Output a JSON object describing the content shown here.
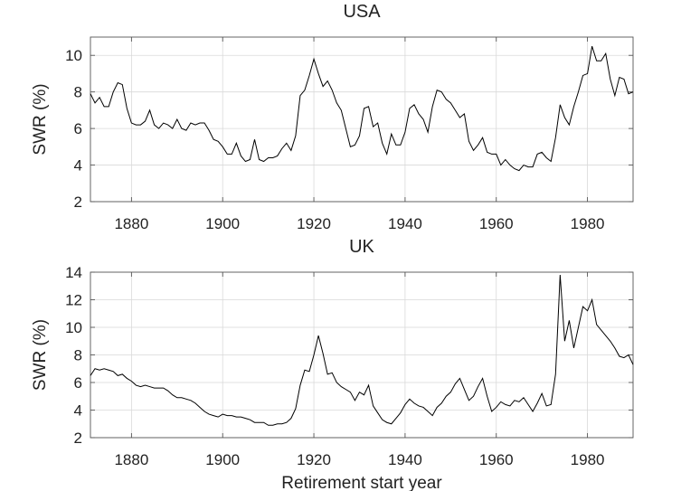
{
  "chart_data": [
    {
      "type": "line",
      "title": "USA",
      "xlabel": "",
      "ylabel": "SWR (%)",
      "xlim": [
        1871,
        1990
      ],
      "ylim": [
        2,
        11
      ],
      "xticks": [
        1880,
        1900,
        1920,
        1940,
        1960,
        1980
      ],
      "yticks": [
        2,
        4,
        6,
        8,
        10
      ],
      "grid": true,
      "series": [
        {
          "color": "#000000",
          "x": [
            1871,
            1872,
            1873,
            1874,
            1875,
            1876,
            1877,
            1878,
            1879,
            1880,
            1881,
            1882,
            1883,
            1884,
            1885,
            1886,
            1887,
            1888,
            1889,
            1890,
            1891,
            1892,
            1893,
            1894,
            1895,
            1896,
            1897,
            1898,
            1899,
            1900,
            1901,
            1902,
            1903,
            1904,
            1905,
            1906,
            1907,
            1908,
            1909,
            1910,
            1911,
            1912,
            1913,
            1914,
            1915,
            1916,
            1917,
            1918,
            1919,
            1920,
            1921,
            1922,
            1923,
            1924,
            1925,
            1926,
            1927,
            1928,
            1929,
            1930,
            1931,
            1932,
            1933,
            1934,
            1935,
            1936,
            1937,
            1938,
            1939,
            1940,
            1941,
            1942,
            1943,
            1944,
            1945,
            1946,
            1947,
            1948,
            1949,
            1950,
            1951,
            1952,
            1953,
            1954,
            1955,
            1956,
            1957,
            1958,
            1959,
            1960,
            1961,
            1962,
            1963,
            1964,
            1965,
            1966,
            1967,
            1968,
            1969,
            1970,
            1971,
            1972,
            1973,
            1974,
            1975,
            1976,
            1977,
            1978,
            1979,
            1980,
            1981,
            1982,
            1983,
            1984,
            1985,
            1986,
            1987,
            1988,
            1989,
            1990
          ],
          "y": [
            7.9,
            7.4,
            7.7,
            7.2,
            7.2,
            8.0,
            8.5,
            8.4,
            7.1,
            6.3,
            6.2,
            6.2,
            6.4,
            7.0,
            6.2,
            6.0,
            6.3,
            6.2,
            6.0,
            6.5,
            6.0,
            5.9,
            6.3,
            6.2,
            6.3,
            6.3,
            5.9,
            5.4,
            5.3,
            5.0,
            4.6,
            4.6,
            5.2,
            4.5,
            4.2,
            4.3,
            5.4,
            4.3,
            4.2,
            4.4,
            4.4,
            4.5,
            4.9,
            5.2,
            4.8,
            5.6,
            7.8,
            8.1,
            8.9,
            9.8,
            9.0,
            8.3,
            8.6,
            8.1,
            7.4,
            7.0,
            6.0,
            5.0,
            5.1,
            5.6,
            7.1,
            7.2,
            6.1,
            6.3,
            5.2,
            4.6,
            5.7,
            5.1,
            5.1,
            5.8,
            7.1,
            7.3,
            6.8,
            6.5,
            5.8,
            7.2,
            8.1,
            8.0,
            7.6,
            7.4,
            7.0,
            6.6,
            6.8,
            5.3,
            4.8,
            5.1,
            5.5,
            4.7,
            4.6,
            4.6,
            4.0,
            4.3,
            4.0,
            3.8,
            3.7,
            4.0,
            3.9,
            3.9,
            4.6,
            4.7,
            4.4,
            4.2,
            5.5,
            7.3,
            6.6,
            6.2,
            7.2,
            8.0,
            8.9,
            9.0,
            10.5,
            9.7,
            9.7,
            10.1,
            8.7,
            7.8,
            8.8,
            8.7,
            7.9,
            8.0
          ]
        }
      ]
    },
    {
      "type": "line",
      "title": "UK",
      "xlabel": "Retirement start year",
      "ylabel": "SWR (%)",
      "xlim": [
        1871,
        1990
      ],
      "ylim": [
        2,
        14
      ],
      "xticks": [
        1880,
        1900,
        1920,
        1940,
        1960,
        1980
      ],
      "yticks": [
        2,
        4,
        6,
        8,
        10,
        12,
        14
      ],
      "grid": true,
      "series": [
        {
          "color": "#000000",
          "x": [
            1871,
            1872,
            1873,
            1874,
            1875,
            1876,
            1877,
            1878,
            1879,
            1880,
            1881,
            1882,
            1883,
            1884,
            1885,
            1886,
            1887,
            1888,
            1889,
            1890,
            1891,
            1892,
            1893,
            1894,
            1895,
            1896,
            1897,
            1898,
            1899,
            1900,
            1901,
            1902,
            1903,
            1904,
            1905,
            1906,
            1907,
            1908,
            1909,
            1910,
            1911,
            1912,
            1913,
            1914,
            1915,
            1916,
            1917,
            1918,
            1919,
            1920,
            1921,
            1922,
            1923,
            1924,
            1925,
            1926,
            1927,
            1928,
            1929,
            1930,
            1931,
            1932,
            1933,
            1934,
            1935,
            1936,
            1937,
            1938,
            1939,
            1940,
            1941,
            1942,
            1943,
            1944,
            1945,
            1946,
            1947,
            1948,
            1949,
            1950,
            1951,
            1952,
            1953,
            1954,
            1955,
            1956,
            1957,
            1958,
            1959,
            1960,
            1961,
            1962,
            1963,
            1964,
            1965,
            1966,
            1967,
            1968,
            1969,
            1970,
            1971,
            1972,
            1973,
            1974,
            1975,
            1976,
            1977,
            1978,
            1979,
            1980,
            1981,
            1982,
            1983,
            1984,
            1985,
            1986,
            1987,
            1988,
            1989,
            1990
          ],
          "y": [
            6.5,
            7.0,
            6.9,
            7.0,
            6.9,
            6.8,
            6.5,
            6.6,
            6.3,
            6.1,
            5.8,
            5.7,
            5.8,
            5.7,
            5.6,
            5.6,
            5.6,
            5.4,
            5.1,
            4.9,
            4.9,
            4.8,
            4.7,
            4.5,
            4.2,
            3.9,
            3.7,
            3.6,
            3.5,
            3.7,
            3.6,
            3.6,
            3.5,
            3.5,
            3.4,
            3.3,
            3.1,
            3.1,
            3.1,
            2.9,
            2.9,
            3.0,
            3.0,
            3.1,
            3.4,
            4.1,
            5.8,
            6.9,
            6.8,
            8.0,
            9.4,
            8.1,
            6.6,
            6.7,
            6.0,
            5.7,
            5.5,
            5.3,
            4.7,
            5.3,
            5.1,
            5.8,
            4.3,
            3.8,
            3.3,
            3.1,
            3.0,
            3.4,
            3.8,
            4.4,
            4.8,
            4.5,
            4.3,
            4.2,
            3.9,
            3.6,
            4.2,
            4.5,
            5.0,
            5.3,
            5.9,
            6.3,
            5.5,
            4.7,
            5.0,
            5.7,
            6.3,
            5.0,
            3.9,
            4.2,
            4.6,
            4.4,
            4.3,
            4.7,
            4.6,
            4.9,
            4.4,
            3.9,
            4.5,
            5.2,
            4.3,
            4.4,
            6.6,
            13.8,
            9.0,
            10.5,
            8.5,
            10.0,
            11.5,
            11.2,
            12.0,
            10.2,
            9.8,
            9.4,
            9.0,
            8.5,
            7.9,
            7.8,
            8.0,
            7.3
          ]
        }
      ]
    }
  ]
}
